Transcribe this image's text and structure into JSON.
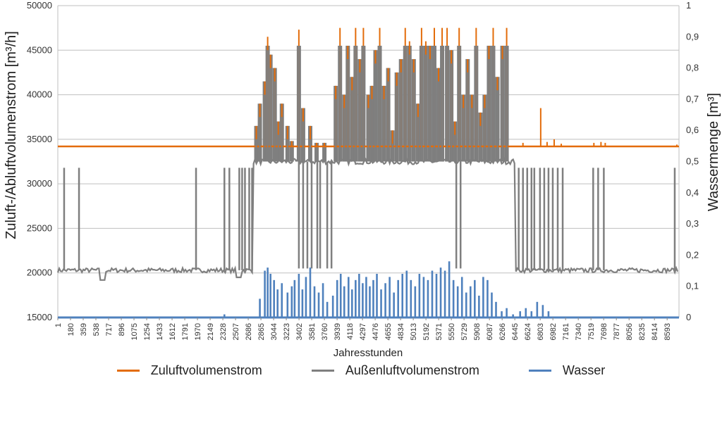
{
  "chart_data": {
    "type": "line",
    "ylabel": "Zuluft-/Abluftvolumenstrom [m³/h]",
    "y2label": "Wassermenge [m³]",
    "xlabel": "Jahresstunden",
    "ylim": [
      15000,
      50000
    ],
    "y2lim": [
      0,
      1
    ],
    "xlim": [
      1,
      8760
    ],
    "grid": true,
    "legend_position": "bottom",
    "y_ticks": [
      "15000",
      "20000",
      "25000",
      "30000",
      "35000",
      "40000",
      "45000",
      "50000"
    ],
    "y2_ticks": [
      "0",
      "0,1",
      "0,2",
      "0,3",
      "0,4",
      "0,5",
      "0,6",
      "0,7",
      "0,8",
      "0,9",
      "1"
    ],
    "x_ticks": [
      "1",
      "180",
      "359",
      "538",
      "717",
      "896",
      "1075",
      "1254",
      "1433",
      "1612",
      "1791",
      "1970",
      "2149",
      "2328",
      "2507",
      "2686",
      "2865",
      "3044",
      "3223",
      "3402",
      "3581",
      "3760",
      "3939",
      "4118",
      "4297",
      "4476",
      "4655",
      "4834",
      "5013",
      "5192",
      "5371",
      "5550",
      "5729",
      "5908",
      "6087",
      "6266",
      "6445",
      "6624",
      "6803",
      "6982",
      "7161",
      "7340",
      "7519",
      "7698",
      "7877",
      "8056",
      "8235",
      "8414",
      "8593"
    ],
    "series": [
      {
        "name": "Zuluftvolumenstrom",
        "color": "#E36C0A",
        "axis": "left",
        "baseline": 34200,
        "spikes": [
          [
            2800,
            36500
          ],
          [
            2850,
            39000
          ],
          [
            2920,
            41500
          ],
          [
            2960,
            46500
          ],
          [
            3000,
            44500
          ],
          [
            3060,
            43000
          ],
          [
            3110,
            37000
          ],
          [
            3160,
            39000
          ],
          [
            3240,
            36500
          ],
          [
            3300,
            34800
          ],
          [
            3400,
            47300
          ],
          [
            3460,
            38500
          ],
          [
            3560,
            36500
          ],
          [
            3650,
            34600
          ],
          [
            3760,
            34600
          ],
          [
            3920,
            41000
          ],
          [
            3980,
            47500
          ],
          [
            4040,
            40000
          ],
          [
            4090,
            45500
          ],
          [
            4150,
            42000
          ],
          [
            4200,
            47500
          ],
          [
            4260,
            44000
          ],
          [
            4310,
            47500
          ],
          [
            4380,
            40000
          ],
          [
            4430,
            41000
          ],
          [
            4480,
            45000
          ],
          [
            4540,
            47500
          ],
          [
            4600,
            41000
          ],
          [
            4660,
            43000
          ],
          [
            4720,
            36000
          ],
          [
            4780,
            42500
          ],
          [
            4840,
            44000
          ],
          [
            4900,
            47500
          ],
          [
            4960,
            46000
          ],
          [
            5020,
            44000
          ],
          [
            5080,
            39000
          ],
          [
            5130,
            47500
          ],
          [
            5190,
            46000
          ],
          [
            5250,
            45500
          ],
          [
            5310,
            47500
          ],
          [
            5370,
            43000
          ],
          [
            5420,
            47500
          ],
          [
            5490,
            47500
          ],
          [
            5550,
            45000
          ],
          [
            5600,
            37000
          ],
          [
            5660,
            47500
          ],
          [
            5720,
            40000
          ],
          [
            5780,
            44000
          ],
          [
            5840,
            40000
          ],
          [
            5900,
            47500
          ],
          [
            5960,
            38000
          ],
          [
            6020,
            40000
          ],
          [
            6080,
            45500
          ],
          [
            6140,
            47500
          ],
          [
            6200,
            42000
          ],
          [
            6270,
            45500
          ],
          [
            6330,
            47500
          ],
          [
            6560,
            34600
          ],
          [
            6810,
            38500
          ],
          [
            6900,
            34700
          ],
          [
            7000,
            35000
          ],
          [
            7100,
            34500
          ],
          [
            7560,
            34600
          ],
          [
            7660,
            34700
          ],
          [
            7720,
            34600
          ],
          [
            8730,
            34400
          ]
        ]
      },
      {
        "name": "Außenluftvolumenstrom",
        "color": "#7F7F7F",
        "axis": "left",
        "baseline_winter": 20300,
        "baseline_summer": 32500,
        "summer_range": [
          2760,
          6450
        ],
        "pulses": [
          90,
          300,
          1950,
          2350,
          2420,
          2560,
          2600,
          2640,
          2700,
          2740,
          6500,
          6560,
          6620,
          6680,
          6720,
          6800,
          6860,
          6920,
          6980,
          7050,
          7120,
          7550,
          7620,
          7700,
          8700
        ],
        "summer_pulses_down": [
          3400,
          3460,
          3520,
          3580,
          3660,
          3700,
          3800,
          3860,
          5620,
          5680
        ],
        "dip": [
          [
            640,
            19200
          ],
          [
            2560,
            19500
          ]
        ]
      },
      {
        "name": "Wasser",
        "color": "#4F81BD",
        "axis": "right",
        "baseline": 0,
        "spikes": [
          [
            2350,
            0.01
          ],
          [
            2850,
            0.06
          ],
          [
            2920,
            0.15
          ],
          [
            2960,
            0.16
          ],
          [
            3000,
            0.14
          ],
          [
            3050,
            0.12
          ],
          [
            3100,
            0.09
          ],
          [
            3160,
            0.11
          ],
          [
            3240,
            0.08
          ],
          [
            3300,
            0.1
          ],
          [
            3340,
            0.12
          ],
          [
            3400,
            0.14
          ],
          [
            3450,
            0.09
          ],
          [
            3500,
            0.13
          ],
          [
            3560,
            0.16
          ],
          [
            3620,
            0.1
          ],
          [
            3680,
            0.08
          ],
          [
            3740,
            0.11
          ],
          [
            3800,
            0.05
          ],
          [
            3880,
            0.07
          ],
          [
            3940,
            0.12
          ],
          [
            3990,
            0.14
          ],
          [
            4040,
            0.1
          ],
          [
            4100,
            0.13
          ],
          [
            4150,
            0.09
          ],
          [
            4200,
            0.12
          ],
          [
            4250,
            0.14
          ],
          [
            4300,
            0.11
          ],
          [
            4350,
            0.13
          ],
          [
            4400,
            0.1
          ],
          [
            4450,
            0.12
          ],
          [
            4500,
            0.14
          ],
          [
            4560,
            0.09
          ],
          [
            4620,
            0.11
          ],
          [
            4680,
            0.13
          ],
          [
            4740,
            0.08
          ],
          [
            4800,
            0.12
          ],
          [
            4860,
            0.14
          ],
          [
            4920,
            0.15
          ],
          [
            4980,
            0.12
          ],
          [
            5040,
            0.1
          ],
          [
            5100,
            0.14
          ],
          [
            5160,
            0.13
          ],
          [
            5220,
            0.12
          ],
          [
            5280,
            0.15
          ],
          [
            5340,
            0.14
          ],
          [
            5400,
            0.16
          ],
          [
            5460,
            0.15
          ],
          [
            5520,
            0.18
          ],
          [
            5580,
            0.12
          ],
          [
            5640,
            0.1
          ],
          [
            5700,
            0.13
          ],
          [
            5760,
            0.08
          ],
          [
            5820,
            0.1
          ],
          [
            5880,
            0.12
          ],
          [
            5940,
            0.07
          ],
          [
            6000,
            0.13
          ],
          [
            6060,
            0.12
          ],
          [
            6120,
            0.08
          ],
          [
            6180,
            0.05
          ],
          [
            6260,
            0.02
          ],
          [
            6330,
            0.03
          ],
          [
            6420,
            0.01
          ],
          [
            6520,
            0.02
          ],
          [
            6600,
            0.03
          ],
          [
            6680,
            0.02
          ],
          [
            6760,
            0.05
          ],
          [
            6840,
            0.04
          ],
          [
            6920,
            0.02
          ]
        ]
      }
    ]
  }
}
